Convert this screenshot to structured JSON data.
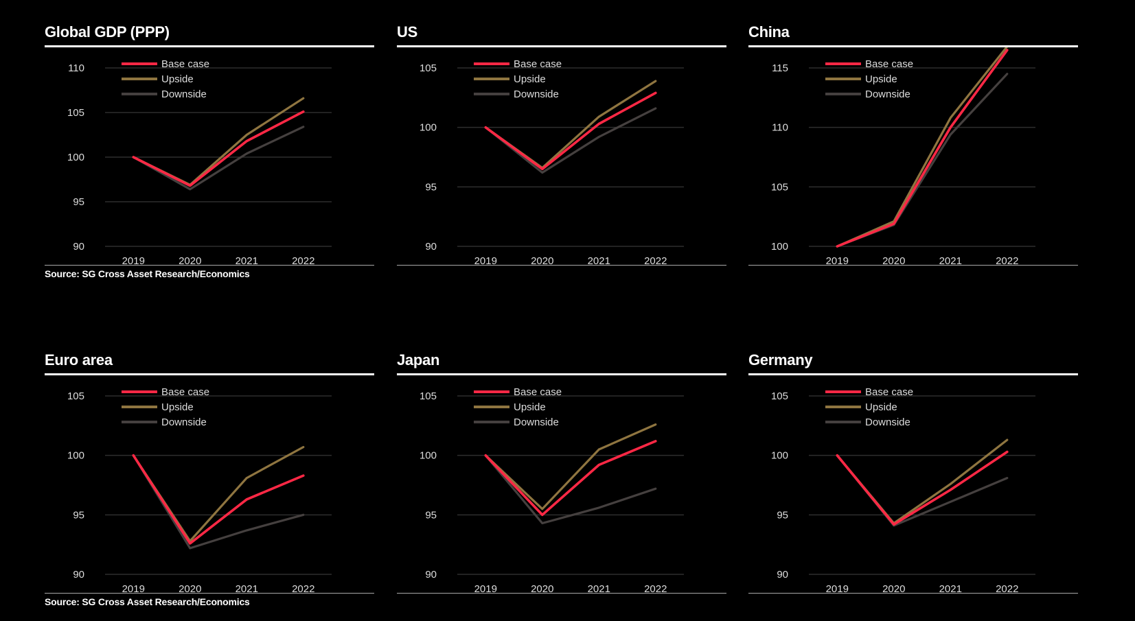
{
  "colors": {
    "base": "#ff2845",
    "upside": "#8f7540",
    "downside": "#45403f",
    "grid": "#2e2e2e"
  },
  "source": "Source: SG Cross Asset Research/Economics",
  "chart_data": [
    {
      "type": "line",
      "title": "Global GDP (PPP)",
      "categories": [
        "2019",
        "2020",
        "2021",
        "2022"
      ],
      "ylim": [
        90,
        110
      ],
      "yticks": [
        90,
        95,
        100,
        105,
        110
      ],
      "legend": "top-left",
      "grid": true,
      "series": [
        {
          "name": "Base case",
          "values": [
            100,
            96.8,
            101.8,
            105.1
          ]
        },
        {
          "name": "Upside",
          "values": [
            100,
            96.9,
            102.5,
            106.6
          ]
        },
        {
          "name": "Downside",
          "values": [
            100,
            96.4,
            100.4,
            103.4
          ]
        }
      ]
    },
    {
      "type": "line",
      "title": "US",
      "categories": [
        "2019",
        "2020",
        "2021",
        "2022"
      ],
      "ylim": [
        90,
        105
      ],
      "yticks": [
        90,
        95,
        100,
        105
      ],
      "legend": "top-left",
      "grid": true,
      "series": [
        {
          "name": "Base case",
          "values": [
            100,
            96.5,
            100.3,
            102.9
          ]
        },
        {
          "name": "Upside",
          "values": [
            100,
            96.6,
            100.9,
            103.9
          ]
        },
        {
          "name": "Downside",
          "values": [
            100,
            96.2,
            99.2,
            101.6
          ]
        }
      ]
    },
    {
      "type": "line",
      "title": "China",
      "categories": [
        "2019",
        "2020",
        "2021",
        "2022"
      ],
      "ylim": [
        100,
        115
      ],
      "yticks": [
        100,
        105,
        110,
        115
      ],
      "legend": "top-left",
      "grid": true,
      "series": [
        {
          "name": "Base case",
          "values": [
            100,
            101.9,
            110.0,
            116.5
          ]
        },
        {
          "name": "Upside",
          "values": [
            100,
            102.1,
            110.8,
            116.8
          ]
        },
        {
          "name": "Downside",
          "values": [
            100,
            101.8,
            109.4,
            114.5
          ]
        }
      ]
    },
    {
      "type": "line",
      "title": "Euro area",
      "categories": [
        "2019",
        "2020",
        "2021",
        "2022"
      ],
      "ylim": [
        90,
        105
      ],
      "yticks": [
        90,
        95,
        100,
        105
      ],
      "legend": "top-left",
      "grid": true,
      "series": [
        {
          "name": "Base case",
          "values": [
            100,
            92.6,
            96.3,
            98.3
          ]
        },
        {
          "name": "Upside",
          "values": [
            100,
            92.8,
            98.1,
            100.7
          ]
        },
        {
          "name": "Downside",
          "values": [
            100,
            92.2,
            93.7,
            95.0
          ]
        }
      ]
    },
    {
      "type": "line",
      "title": "Japan",
      "categories": [
        "2019",
        "2020",
        "2021",
        "2022"
      ],
      "ylim": [
        90,
        105
      ],
      "yticks": [
        90,
        95,
        100,
        105
      ],
      "legend": "top-left",
      "grid": true,
      "series": [
        {
          "name": "Base case",
          "values": [
            100,
            95.0,
            99.2,
            101.2
          ]
        },
        {
          "name": "Upside",
          "values": [
            100,
            95.5,
            100.5,
            102.6
          ]
        },
        {
          "name": "Downside",
          "values": [
            100,
            94.3,
            95.6,
            97.2
          ]
        }
      ]
    },
    {
      "type": "line",
      "title": "Germany",
      "categories": [
        "2019",
        "2020",
        "2021",
        "2022"
      ],
      "ylim": [
        90,
        105
      ],
      "yticks": [
        90,
        95,
        100,
        105
      ],
      "legend": "top-left",
      "grid": true,
      "series": [
        {
          "name": "Base case",
          "values": [
            100,
            94.2,
            97.1,
            100.3
          ]
        },
        {
          "name": "Upside",
          "values": [
            100,
            94.3,
            97.6,
            101.3
          ]
        },
        {
          "name": "Downside",
          "values": [
            100,
            94.1,
            96.1,
            98.1
          ]
        }
      ]
    }
  ]
}
